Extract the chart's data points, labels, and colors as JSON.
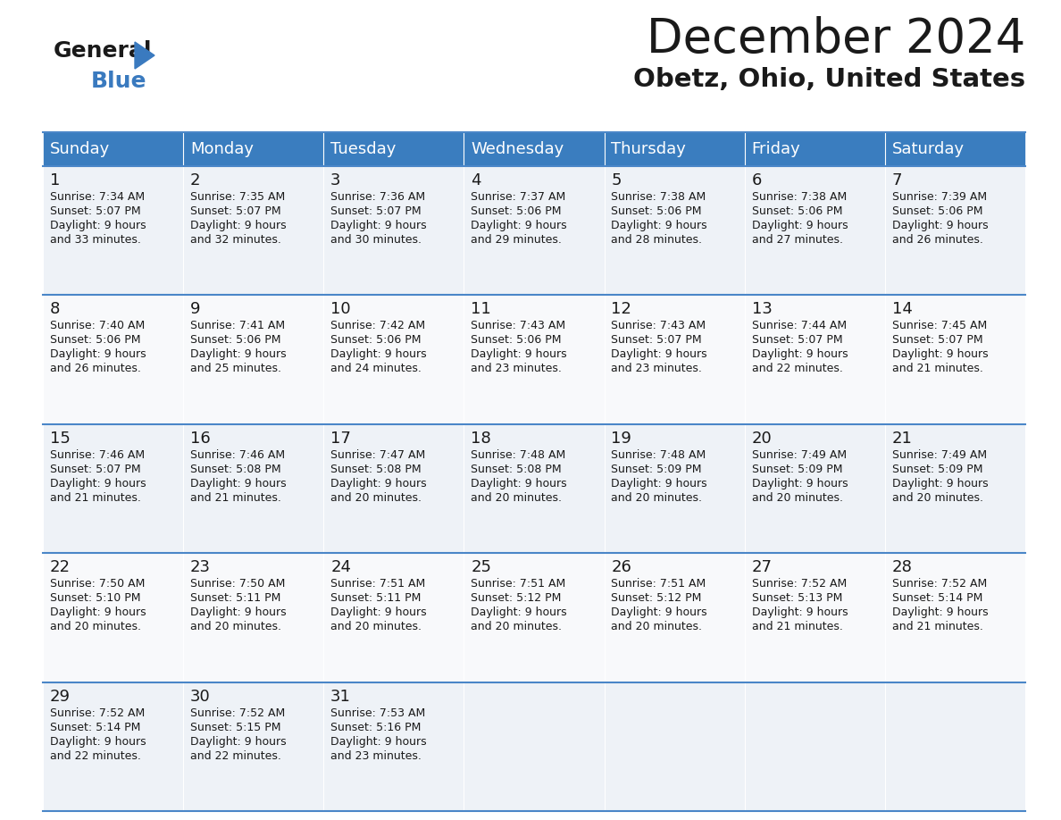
{
  "title": "December 2024",
  "subtitle": "Obetz, Ohio, United States",
  "header_color": "#3a7dbf",
  "header_text_color": "#ffffff",
  "cell_bg_even": "#eef2f7",
  "cell_bg_odd": "#f8f9fb",
  "border_color": "#4a86c8",
  "text_color": "#1a1a1a",
  "days_of_week": [
    "Sunday",
    "Monday",
    "Tuesday",
    "Wednesday",
    "Thursday",
    "Friday",
    "Saturday"
  ],
  "weeks": [
    [
      {
        "day": 1,
        "sunrise": "7:34 AM",
        "sunset": "5:07 PM",
        "daylight_line1": "9 hours",
        "daylight_line2": "and 33 minutes."
      },
      {
        "day": 2,
        "sunrise": "7:35 AM",
        "sunset": "5:07 PM",
        "daylight_line1": "9 hours",
        "daylight_line2": "and 32 minutes."
      },
      {
        "day": 3,
        "sunrise": "7:36 AM",
        "sunset": "5:07 PM",
        "daylight_line1": "9 hours",
        "daylight_line2": "and 30 minutes."
      },
      {
        "day": 4,
        "sunrise": "7:37 AM",
        "sunset": "5:06 PM",
        "daylight_line1": "9 hours",
        "daylight_line2": "and 29 minutes."
      },
      {
        "day": 5,
        "sunrise": "7:38 AM",
        "sunset": "5:06 PM",
        "daylight_line1": "9 hours",
        "daylight_line2": "and 28 minutes."
      },
      {
        "day": 6,
        "sunrise": "7:38 AM",
        "sunset": "5:06 PM",
        "daylight_line1": "9 hours",
        "daylight_line2": "and 27 minutes."
      },
      {
        "day": 7,
        "sunrise": "7:39 AM",
        "sunset": "5:06 PM",
        "daylight_line1": "9 hours",
        "daylight_line2": "and 26 minutes."
      }
    ],
    [
      {
        "day": 8,
        "sunrise": "7:40 AM",
        "sunset": "5:06 PM",
        "daylight_line1": "9 hours",
        "daylight_line2": "and 26 minutes."
      },
      {
        "day": 9,
        "sunrise": "7:41 AM",
        "sunset": "5:06 PM",
        "daylight_line1": "9 hours",
        "daylight_line2": "and 25 minutes."
      },
      {
        "day": 10,
        "sunrise": "7:42 AM",
        "sunset": "5:06 PM",
        "daylight_line1": "9 hours",
        "daylight_line2": "and 24 minutes."
      },
      {
        "day": 11,
        "sunrise": "7:43 AM",
        "sunset": "5:06 PM",
        "daylight_line1": "9 hours",
        "daylight_line2": "and 23 minutes."
      },
      {
        "day": 12,
        "sunrise": "7:43 AM",
        "sunset": "5:07 PM",
        "daylight_line1": "9 hours",
        "daylight_line2": "and 23 minutes."
      },
      {
        "day": 13,
        "sunrise": "7:44 AM",
        "sunset": "5:07 PM",
        "daylight_line1": "9 hours",
        "daylight_line2": "and 22 minutes."
      },
      {
        "day": 14,
        "sunrise": "7:45 AM",
        "sunset": "5:07 PM",
        "daylight_line1": "9 hours",
        "daylight_line2": "and 21 minutes."
      }
    ],
    [
      {
        "day": 15,
        "sunrise": "7:46 AM",
        "sunset": "5:07 PM",
        "daylight_line1": "9 hours",
        "daylight_line2": "and 21 minutes."
      },
      {
        "day": 16,
        "sunrise": "7:46 AM",
        "sunset": "5:08 PM",
        "daylight_line1": "9 hours",
        "daylight_line2": "and 21 minutes."
      },
      {
        "day": 17,
        "sunrise": "7:47 AM",
        "sunset": "5:08 PM",
        "daylight_line1": "9 hours",
        "daylight_line2": "and 20 minutes."
      },
      {
        "day": 18,
        "sunrise": "7:48 AM",
        "sunset": "5:08 PM",
        "daylight_line1": "9 hours",
        "daylight_line2": "and 20 minutes."
      },
      {
        "day": 19,
        "sunrise": "7:48 AM",
        "sunset": "5:09 PM",
        "daylight_line1": "9 hours",
        "daylight_line2": "and 20 minutes."
      },
      {
        "day": 20,
        "sunrise": "7:49 AM",
        "sunset": "5:09 PM",
        "daylight_line1": "9 hours",
        "daylight_line2": "and 20 minutes."
      },
      {
        "day": 21,
        "sunrise": "7:49 AM",
        "sunset": "5:09 PM",
        "daylight_line1": "9 hours",
        "daylight_line2": "and 20 minutes."
      }
    ],
    [
      {
        "day": 22,
        "sunrise": "7:50 AM",
        "sunset": "5:10 PM",
        "daylight_line1": "9 hours",
        "daylight_line2": "and 20 minutes."
      },
      {
        "day": 23,
        "sunrise": "7:50 AM",
        "sunset": "5:11 PM",
        "daylight_line1": "9 hours",
        "daylight_line2": "and 20 minutes."
      },
      {
        "day": 24,
        "sunrise": "7:51 AM",
        "sunset": "5:11 PM",
        "daylight_line1": "9 hours",
        "daylight_line2": "and 20 minutes."
      },
      {
        "day": 25,
        "sunrise": "7:51 AM",
        "sunset": "5:12 PM",
        "daylight_line1": "9 hours",
        "daylight_line2": "and 20 minutes."
      },
      {
        "day": 26,
        "sunrise": "7:51 AM",
        "sunset": "5:12 PM",
        "daylight_line1": "9 hours",
        "daylight_line2": "and 20 minutes."
      },
      {
        "day": 27,
        "sunrise": "7:52 AM",
        "sunset": "5:13 PM",
        "daylight_line1": "9 hours",
        "daylight_line2": "and 21 minutes."
      },
      {
        "day": 28,
        "sunrise": "7:52 AM",
        "sunset": "5:14 PM",
        "daylight_line1": "9 hours",
        "daylight_line2": "and 21 minutes."
      }
    ],
    [
      {
        "day": 29,
        "sunrise": "7:52 AM",
        "sunset": "5:14 PM",
        "daylight_line1": "9 hours",
        "daylight_line2": "and 22 minutes."
      },
      {
        "day": 30,
        "sunrise": "7:52 AM",
        "sunset": "5:15 PM",
        "daylight_line1": "9 hours",
        "daylight_line2": "and 22 minutes."
      },
      {
        "day": 31,
        "sunrise": "7:53 AM",
        "sunset": "5:16 PM",
        "daylight_line1": "9 hours",
        "daylight_line2": "and 23 minutes."
      },
      null,
      null,
      null,
      null
    ]
  ],
  "logo_color_black": "#1a1a1a",
  "logo_color_blue": "#3a7abf",
  "title_fontsize": 38,
  "subtitle_fontsize": 21,
  "header_fontsize": 13,
  "day_num_fontsize": 13,
  "cell_text_fontsize": 9
}
